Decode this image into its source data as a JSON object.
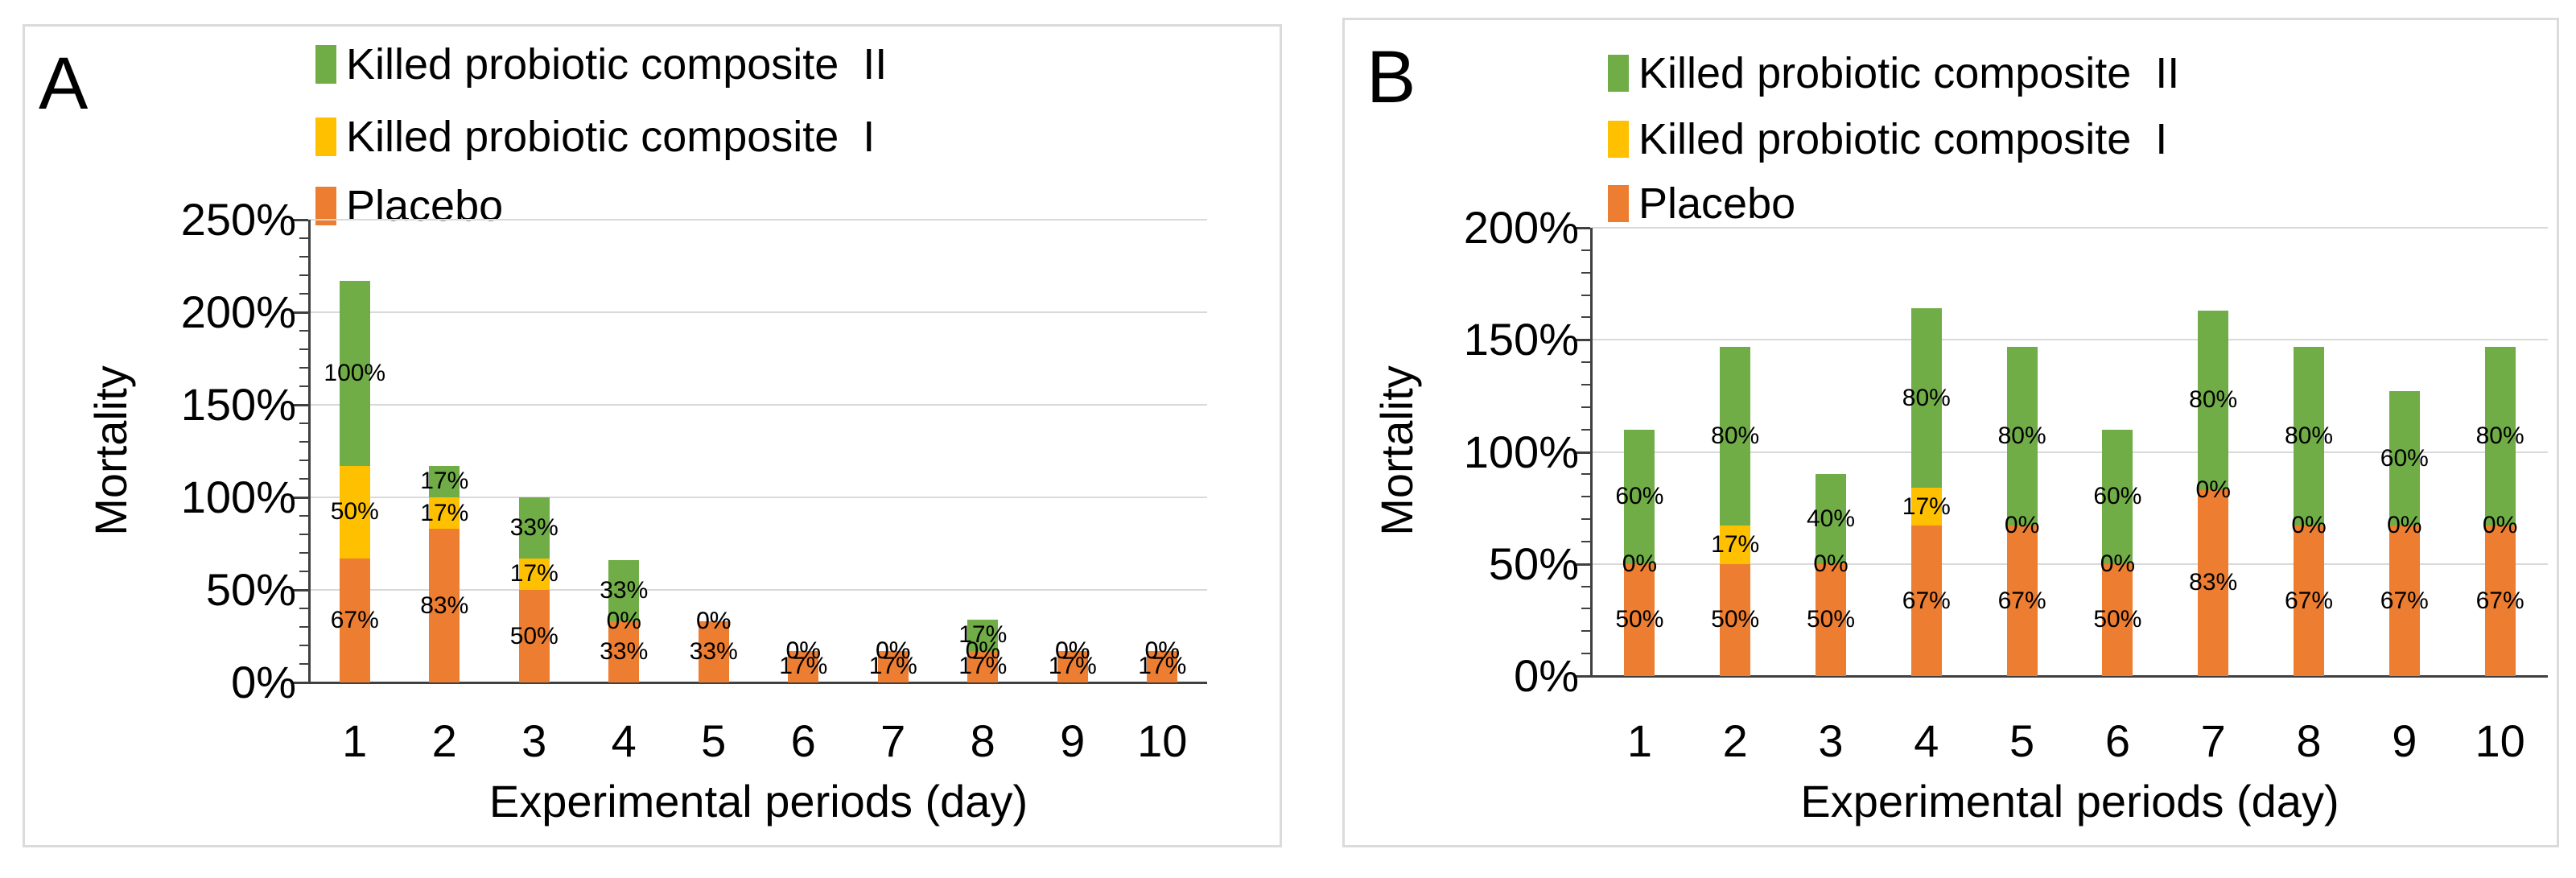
{
  "colors": {
    "green": "#70AD47",
    "yellow": "#FFC000",
    "orange": "#ED7D31",
    "grid": "#D9D9D9",
    "axis": "#404040",
    "text": "#000000",
    "panel_border": "#DBDBDB"
  },
  "chart_data": [
    {
      "type": "bar",
      "stacked": true,
      "panel_label": "A",
      "xlabel": "Experimental periods (day)",
      "ylabel": "Mortality",
      "ylim": [
        0,
        250
      ],
      "ytick_step": 50,
      "yminor_step": 10,
      "ytick_suffix": "%",
      "grid": true,
      "legend_position": "top-left-vertical",
      "legend": [
        {
          "label": "Killed probiotic composite  II",
          "color_key": "green"
        },
        {
          "label": "Killed probiotic composite  I",
          "color_key": "yellow"
        },
        {
          "label": "Placebo",
          "color_key": "orange"
        }
      ],
      "categories": [
        "1",
        "2",
        "3",
        "4",
        "5",
        "6",
        "7",
        "8",
        "9",
        "10"
      ],
      "series": [
        {
          "name": "Placebo",
          "color_key": "orange",
          "values": [
            67,
            83,
            50,
            33,
            33,
            17,
            17,
            17,
            17,
            17
          ]
        },
        {
          "name": "Killed probiotic composite I",
          "color_key": "yellow",
          "values": [
            50,
            17,
            17,
            0,
            0,
            0,
            0,
            0,
            0,
            0
          ]
        },
        {
          "name": "Killed probiotic composite II",
          "color_key": "green",
          "values": [
            100,
            17,
            33,
            33,
            0,
            0,
            0,
            17,
            0,
            0
          ]
        }
      ],
      "data_label_suffix": "%"
    },
    {
      "type": "bar",
      "stacked": true,
      "panel_label": "B",
      "xlabel": "Experimental periods (day)",
      "ylabel": "Mortality",
      "ylim": [
        0,
        200
      ],
      "ytick_step": 50,
      "yminor_step": 10,
      "ytick_suffix": "%",
      "grid": true,
      "legend_position": "top-left-vertical",
      "legend": [
        {
          "label": "Killed probiotic composite  II",
          "color_key": "green"
        },
        {
          "label": "Killed probiotic composite  I",
          "color_key": "yellow"
        },
        {
          "label": "Placebo",
          "color_key": "orange"
        }
      ],
      "categories": [
        "1",
        "2",
        "3",
        "4",
        "5",
        "6",
        "7",
        "8",
        "9",
        "10"
      ],
      "series": [
        {
          "name": "Placebo",
          "color_key": "orange",
          "values": [
            50,
            50,
            50,
            67,
            67,
            50,
            83,
            67,
            67,
            67
          ]
        },
        {
          "name": "Killed probiotic composite I",
          "color_key": "yellow",
          "values": [
            0,
            17,
            0,
            17,
            0,
            0,
            0,
            0,
            0,
            0
          ]
        },
        {
          "name": "Killed probiotic composite II",
          "color_key": "green",
          "values": [
            60,
            80,
            40,
            80,
            80,
            60,
            80,
            80,
            60,
            80
          ]
        }
      ],
      "data_label_suffix": "%"
    }
  ]
}
